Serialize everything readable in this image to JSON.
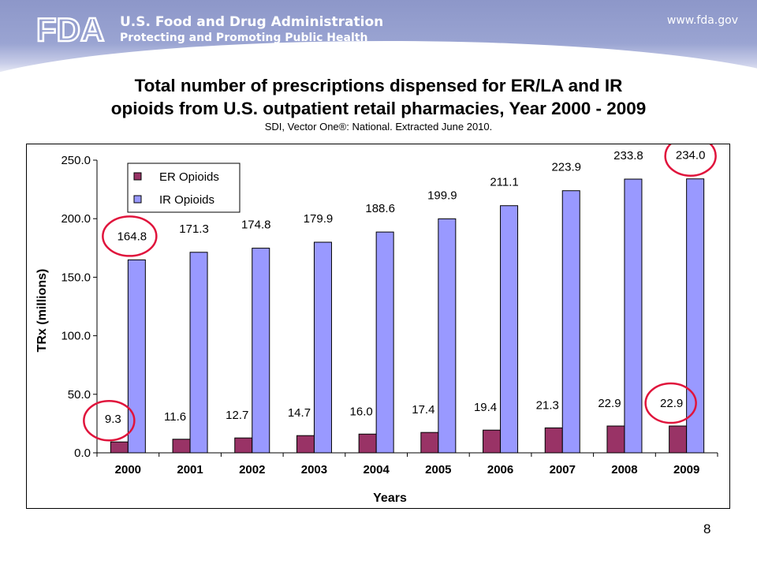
{
  "header": {
    "logo_text": "FDA",
    "agency_name": "U.S. Food and Drug Administration",
    "tagline": "Protecting and Promoting Public Health",
    "url": "www.fda.gov"
  },
  "slide": {
    "title_line1": "Total number of prescriptions dispensed for ER/LA and IR",
    "title_line2": "opioids from U.S. outpatient retail pharmacies, Year 2000 - 2009",
    "subtitle": "SDI, Vector One®:  National.  Extracted June 2010.",
    "page_number": "8"
  },
  "chart_data": {
    "type": "bar",
    "xlabel": "Years",
    "ylabel": "TRx (millions)",
    "ylim": [
      0,
      250
    ],
    "yticks": [
      "0.0",
      "50.0",
      "100.0",
      "150.0",
      "200.0",
      "250.0"
    ],
    "categories": [
      "2000",
      "2001",
      "2002",
      "2003",
      "2004",
      "2005",
      "2006",
      "2007",
      "2008",
      "2009"
    ],
    "series": [
      {
        "name": "ER Opioids",
        "color": "#993366",
        "values": [
          9.3,
          11.6,
          12.7,
          14.7,
          16.0,
          17.4,
          19.4,
          21.3,
          22.9,
          22.9
        ],
        "labels": [
          "9.3",
          "11.6",
          "12.7",
          "14.7",
          "16.0",
          "17.4",
          "19.4",
          "21.3",
          "22.9",
          "22.9"
        ]
      },
      {
        "name": "IR Opioids",
        "color": "#9999ff",
        "values": [
          164.8,
          171.3,
          174.8,
          179.9,
          188.6,
          199.9,
          211.1,
          223.9,
          233.8,
          234.0
        ],
        "labels": [
          "164.8",
          "171.3",
          "174.8",
          "179.9",
          "188.6",
          "199.9",
          "211.1",
          "223.9",
          "233.8",
          "234.0"
        ]
      }
    ],
    "legend_position": "top-left",
    "grid": false,
    "highlight_color": "#e0143c"
  }
}
